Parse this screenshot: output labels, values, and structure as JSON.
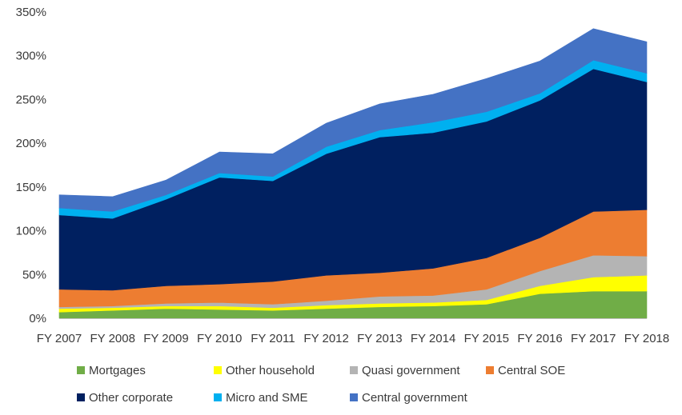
{
  "chart_data": {
    "type": "area",
    "stacked": true,
    "title": "",
    "xlabel": "",
    "ylabel": "",
    "categories": [
      "FY 2007",
      "FY 2008",
      "FY 2009",
      "FY 2010",
      "FY 2011",
      "FY 2012",
      "FY 2013",
      "FY 2014",
      "FY 2015",
      "FY 2016",
      "FY 2017",
      "FY 2018"
    ],
    "ylim": [
      0,
      350
    ],
    "yticks": [
      0,
      50,
      100,
      150,
      200,
      250,
      300,
      350
    ],
    "ytick_labels": [
      "0%",
      "50%",
      "100%",
      "150%",
      "200%",
      "250%",
      "300%",
      "350%"
    ],
    "grid": false,
    "legend_position": "bottom",
    "series": [
      {
        "name": "Mortgages",
        "color": "#70ad47",
        "values": [
          7,
          9,
          11,
          10,
          9,
          11,
          13,
          14,
          16,
          28,
          31,
          31
        ]
      },
      {
        "name": "Other household",
        "color": "#ffff00",
        "values": [
          4,
          3,
          3,
          4,
          3,
          4,
          4,
          4,
          5,
          9,
          16,
          18
        ]
      },
      {
        "name": "Quasi government",
        "color": "#b4b4b4",
        "values": [
          2,
          2,
          3,
          4,
          4,
          5,
          8,
          8,
          12,
          17,
          25,
          22
        ]
      },
      {
        "name": "Central SOE",
        "color": "#ed7d31",
        "values": [
          20,
          18,
          20,
          21,
          26,
          29,
          27,
          31,
          36,
          38,
          50,
          53
        ]
      },
      {
        "name": "Other corporate",
        "color": "#002060",
        "values": [
          85,
          82,
          99,
          122,
          115,
          139,
          155,
          155,
          156,
          157,
          163,
          146
        ]
      },
      {
        "name": "Micro and SME",
        "color": "#00b0f0",
        "values": [
          8,
          8,
          5,
          5,
          5,
          8,
          8,
          12,
          11,
          8,
          10,
          10
        ]
      },
      {
        "name": "Central government",
        "color": "#4472c4",
        "values": [
          15,
          17,
          17,
          24,
          26,
          27,
          30,
          32,
          38,
          37,
          36,
          36
        ]
      }
    ]
  }
}
